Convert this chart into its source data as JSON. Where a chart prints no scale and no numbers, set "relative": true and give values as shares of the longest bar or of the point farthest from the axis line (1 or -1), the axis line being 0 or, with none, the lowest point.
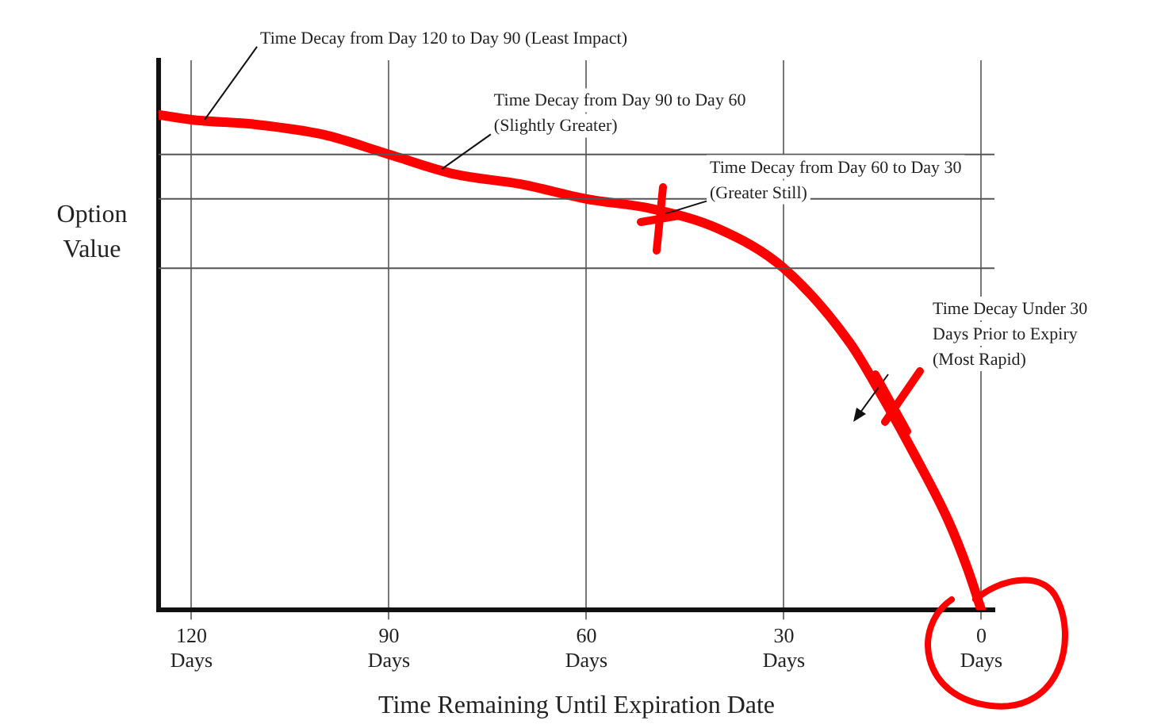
{
  "chart_data": {
    "type": "line",
    "relative": true,
    "xlabel": "Time Remaining Until Expiration Date",
    "ylabel": "Option Value",
    "x": [
      125,
      120,
      110,
      100,
      90,
      80,
      70,
      60,
      50,
      40,
      30,
      20,
      15,
      10,
      5,
      2,
      0
    ],
    "series": [
      {
        "color": "#ff0000",
        "values": [
          1,
          0.99,
          0.98,
          0.96,
          0.92,
          0.88,
          0.86,
          0.83,
          0.81,
          0.77,
          0.69,
          0.54,
          0.43,
          0.31,
          0.18,
          0.08,
          0
        ]
      }
    ],
    "xlim": [
      125,
      -2
    ],
    "xticks": [
      {
        "value": 120,
        "label": "120 Days"
      },
      {
        "value": 90,
        "label": "90 Days"
      },
      {
        "value": 60,
        "label": "60 Days"
      },
      {
        "value": 30,
        "label": "30 Days"
      },
      {
        "value": 0,
        "label": "0 Days"
      }
    ],
    "grid": "x",
    "marker": "none",
    "line_style": "solid",
    "legend": false,
    "ref_lines": [
      {
        "axis": "y",
        "value": 0.92,
        "color": "#555555"
      },
      {
        "axis": "y",
        "value": 0.83,
        "color": "#555555"
      },
      {
        "axis": "y",
        "value": 0.69,
        "color": "#555555"
      }
    ],
    "annotations": [
      {
        "text": "Time Decay from Day 120 to Day 90 (Least Impact)",
        "x": 118,
        "y": 0.99
      },
      {
        "text": "Time Decay from Day 90 to Day 60 (Slightly Greater)",
        "x": 82,
        "y": 0.89
      },
      {
        "text": "Time Decay from Day 60 to Day 30 (Greater Still)",
        "x": 48,
        "y": 0.8
      },
      "Time Decay Under 30 Days Prior to Expiry (Most Rapid)"
    ]
  }
}
